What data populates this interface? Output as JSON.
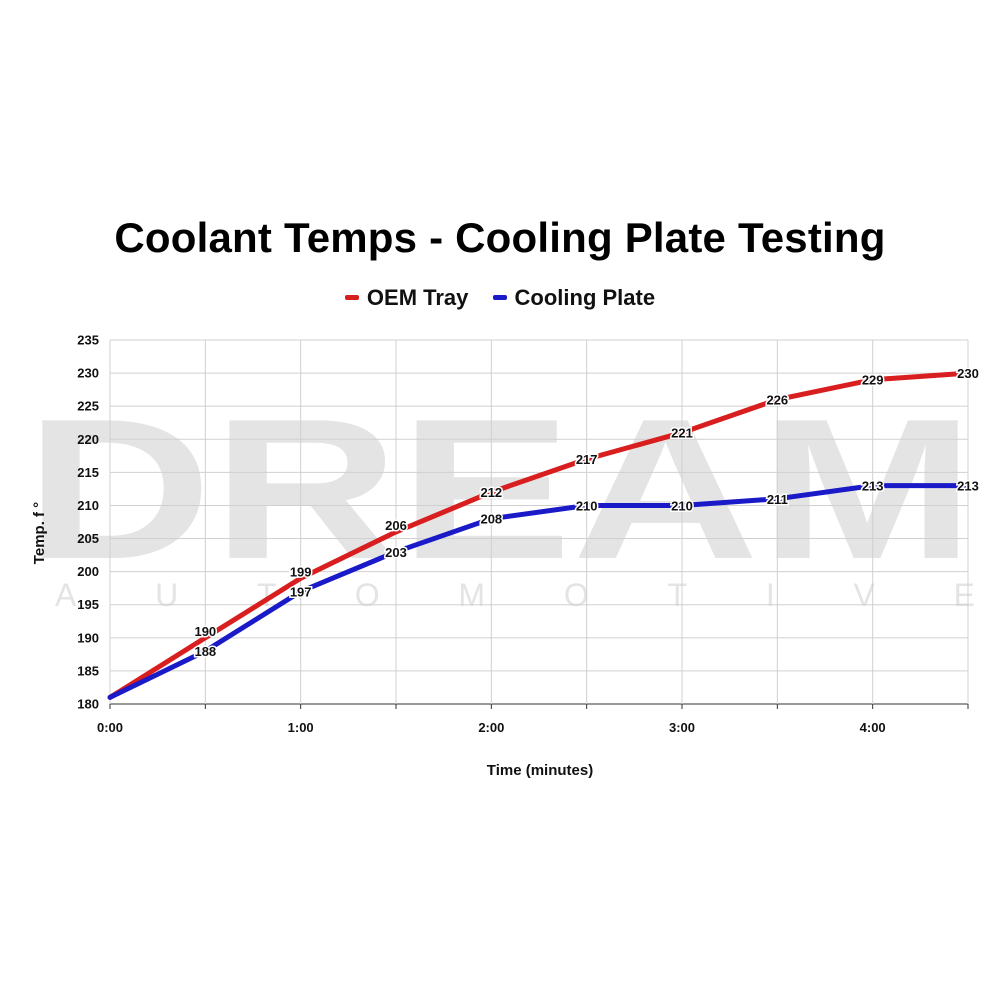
{
  "watermark": {
    "brand": "DREAM",
    "sub": "AUTOMOTIVE"
  },
  "chart_data": {
    "type": "line",
    "title": "Coolant Temps - Cooling Plate Testing",
    "xlabel": "Time (minutes)",
    "ylabel": "Temp. f °",
    "x_tick_labels": [
      "0:00",
      "1:00",
      "2:00",
      "3:00",
      "4:00"
    ],
    "x_tick_values": [
      0,
      60,
      120,
      180,
      240
    ],
    "xlim": [
      0,
      270
    ],
    "ylim": [
      180,
      235
    ],
    "y_ticks": [
      180,
      185,
      190,
      195,
      200,
      205,
      210,
      215,
      220,
      225,
      230,
      235
    ],
    "grid": true,
    "legend_position": "top-center",
    "x": [
      0,
      30,
      60,
      90,
      120,
      150,
      180,
      210,
      240,
      270
    ],
    "series": [
      {
        "name": "OEM Tray",
        "color": "#d81e1e",
        "values": [
          181,
          190,
          199,
          206,
          212,
          217,
          221,
          226,
          229,
          230
        ],
        "labels": [
          null,
          "190",
          "199",
          "206",
          "212",
          "217",
          "221",
          "226",
          "229",
          "230"
        ]
      },
      {
        "name": "Cooling Plate",
        "color": "#1a1ac8",
        "values": [
          181,
          188,
          197,
          203,
          208,
          210,
          210,
          211,
          213,
          213
        ],
        "labels": [
          null,
          "188",
          "197",
          "203",
          "208",
          "210",
          "210",
          "211",
          "213",
          "213"
        ]
      }
    ]
  }
}
